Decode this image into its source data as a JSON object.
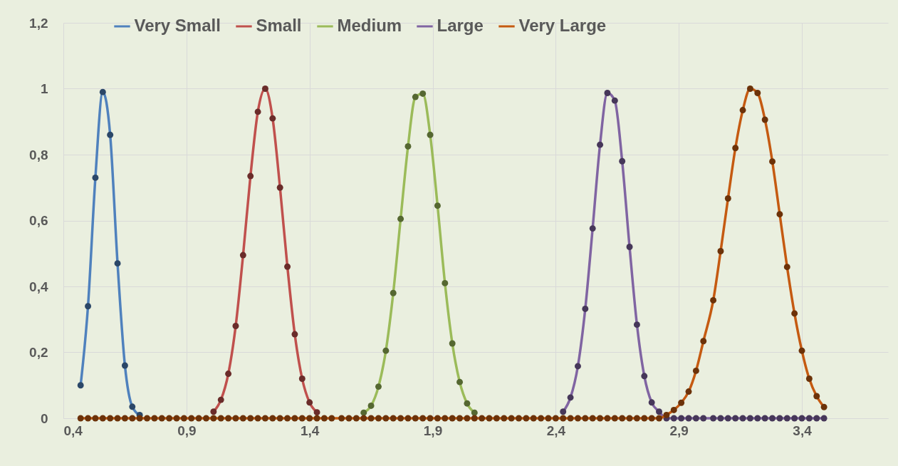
{
  "chart_data": {
    "type": "line",
    "legend": "top",
    "grid": true,
    "marker": "circle",
    "line_style": "solid",
    "xlim": [
      0.4,
      3.75
    ],
    "ylim": [
      0,
      1.2
    ],
    "xticks": [
      {
        "value": 0.4,
        "label": "0,4"
      },
      {
        "value": 0.9,
        "label": "0,9"
      },
      {
        "value": 1.4,
        "label": "1,4"
      },
      {
        "value": 1.9,
        "label": "1,9"
      },
      {
        "value": 2.4,
        "label": "2,4"
      },
      {
        "value": 2.9,
        "label": "2,9"
      },
      {
        "value": 3.4,
        "label": "3,4"
      }
    ],
    "yticks": [
      0,
      {
        "value": 0.2,
        "label": "0,2"
      },
      {
        "value": 0.4,
        "label": "0,4"
      },
      {
        "value": 0.6,
        "label": "0,6"
      },
      {
        "value": 0.8,
        "label": "0,8"
      },
      1,
      {
        "value": 1.2,
        "label": "1,2"
      }
    ],
    "x": [
      0.47,
      0.5,
      0.53,
      0.56,
      0.59,
      0.62,
      0.65,
      0.68,
      0.71,
      0.74,
      0.77,
      0.8,
      0.83,
      0.86,
      0.89,
      0.92,
      0.95,
      0.98,
      1.01,
      1.04,
      1.07,
      1.1,
      1.13,
      1.16,
      1.19,
      1.22,
      1.25,
      1.28,
      1.31,
      1.34,
      1.37,
      1.4,
      1.43,
      1.46,
      1.49,
      1.53,
      1.56,
      1.59,
      1.62,
      1.65,
      1.68,
      1.71,
      1.74,
      1.77,
      1.8,
      1.83,
      1.86,
      1.89,
      1.92,
      1.95,
      1.98,
      2.01,
      2.04,
      2.07,
      2.1,
      2.13,
      2.16,
      2.19,
      2.22,
      2.25,
      2.28,
      2.31,
      2.34,
      2.37,
      2.4,
      2.43,
      2.46,
      2.49,
      2.52,
      2.55,
      2.58,
      2.61,
      2.64,
      2.67,
      2.7,
      2.73,
      2.76,
      2.79,
      2.82,
      2.85,
      2.88,
      2.91,
      2.94,
      2.97,
      3.0,
      3.04,
      3.07,
      3.1,
      3.13,
      3.16,
      3.19,
      3.22,
      3.25,
      3.28,
      3.31,
      3.34,
      3.37,
      3.4,
      3.43,
      3.46,
      3.49
    ],
    "series": [
      {
        "name": "Very Small",
        "color": "#4f81bd",
        "values": [
          0.1,
          0.34,
          0.73,
          0.99,
          0.86,
          0.47,
          0.16,
          0.035,
          0.01,
          null,
          null,
          null,
          null,
          null,
          null,
          null,
          null,
          null,
          null,
          null,
          null,
          null,
          null,
          null,
          null,
          null,
          null,
          null,
          null,
          null,
          null,
          null,
          null,
          null,
          null,
          null,
          null,
          null,
          null,
          null,
          null,
          null,
          null,
          null,
          null,
          null,
          null,
          null,
          null,
          null,
          null,
          null,
          null,
          null,
          null,
          null,
          null,
          null,
          null,
          null,
          null,
          null,
          null,
          null,
          null,
          null,
          null,
          null,
          null,
          null,
          null,
          null,
          null,
          null,
          null,
          null,
          null,
          null,
          null,
          null,
          null,
          null,
          null,
          null,
          null,
          null,
          null,
          null,
          null,
          null,
          null,
          null,
          null,
          null,
          null,
          null,
          null,
          null,
          null,
          null,
          null
        ]
      },
      {
        "name": "Small",
        "color": "#c0504d",
        "values": [
          null,
          null,
          null,
          null,
          null,
          null,
          null,
          null,
          null,
          null,
          null,
          null,
          null,
          null,
          null,
          null,
          null,
          null,
          0.02,
          0.056,
          0.135,
          0.28,
          0.495,
          0.735,
          0.93,
          1.0,
          0.91,
          0.7,
          0.46,
          0.255,
          0.12,
          0.048,
          0.018,
          null,
          null,
          null,
          null,
          null,
          null,
          null,
          null,
          null,
          null,
          null,
          null,
          null,
          null,
          null,
          null,
          null,
          null,
          null,
          null,
          null,
          null,
          null,
          null,
          null,
          null,
          null,
          null,
          null,
          null,
          null,
          null,
          null,
          null,
          null,
          null,
          null,
          null,
          null,
          null,
          null,
          null,
          null,
          null,
          null,
          null,
          null,
          null,
          null,
          null,
          null,
          null,
          null,
          null,
          null,
          null,
          null,
          null,
          null,
          null,
          null,
          null,
          null,
          null,
          null,
          null,
          null,
          null
        ]
      },
      {
        "name": "Medium",
        "color": "#9bbb59",
        "values": [
          null,
          null,
          null,
          null,
          null,
          null,
          null,
          null,
          null,
          null,
          null,
          null,
          null,
          null,
          null,
          null,
          null,
          null,
          null,
          null,
          null,
          null,
          null,
          null,
          null,
          null,
          null,
          null,
          null,
          null,
          null,
          null,
          null,
          null,
          null,
          null,
          null,
          null,
          0.017,
          0.038,
          0.096,
          0.205,
          0.38,
          0.605,
          0.825,
          0.975,
          0.985,
          0.86,
          0.645,
          0.41,
          0.227,
          0.11,
          0.045,
          0.017,
          null,
          null,
          null,
          null,
          null,
          null,
          null,
          null,
          null,
          null,
          null,
          null,
          null,
          null,
          null,
          null,
          null,
          null,
          null,
          null,
          null,
          null,
          null,
          null,
          null,
          null,
          null,
          null,
          null,
          null,
          null,
          null,
          null,
          null,
          null,
          null,
          null,
          null,
          null,
          null,
          null,
          null,
          null,
          null,
          null,
          null,
          null
        ]
      },
      {
        "name": "Large",
        "color": "#8064a2",
        "values": [
          null,
          null,
          null,
          null,
          null,
          null,
          null,
          null,
          null,
          null,
          null,
          null,
          null,
          null,
          null,
          null,
          null,
          null,
          null,
          null,
          null,
          null,
          null,
          null,
          null,
          null,
          null,
          null,
          null,
          null,
          null,
          null,
          null,
          null,
          null,
          null,
          null,
          null,
          null,
          null,
          null,
          null,
          null,
          null,
          null,
          null,
          null,
          null,
          null,
          null,
          null,
          null,
          null,
          null,
          null,
          null,
          null,
          null,
          null,
          null,
          null,
          null,
          null,
          null,
          null,
          0.02,
          0.063,
          0.158,
          0.332,
          0.576,
          0.83,
          0.987,
          0.964,
          0.78,
          0.52,
          0.284,
          0.128,
          0.048,
          0.02,
          0,
          0,
          0,
          0,
          0,
          0,
          0,
          0,
          0,
          0,
          0,
          0,
          0,
          0,
          0,
          0,
          0,
          0,
          0,
          0,
          0,
          0
        ]
      },
      {
        "name": "Very Large",
        "color": "#c55a11",
        "values": [
          0,
          0,
          0,
          0,
          0,
          0,
          0,
          0,
          0,
          0,
          0,
          0,
          0,
          0,
          0,
          0,
          0,
          0,
          0,
          0,
          0,
          0,
          0,
          0,
          0,
          0,
          0,
          0,
          0,
          0,
          0,
          0,
          0,
          0,
          0,
          0,
          0,
          0,
          0,
          0,
          0,
          0,
          0,
          0,
          0,
          0,
          0,
          0,
          0,
          0,
          0,
          0,
          0,
          0,
          0,
          0,
          0,
          0,
          0,
          0,
          0,
          0,
          0,
          0,
          0,
          0,
          0,
          0,
          0,
          0,
          0,
          0,
          0,
          0,
          0,
          0,
          0,
          0,
          0,
          0.01,
          0.025,
          0.047,
          0.081,
          0.144,
          0.234,
          0.358,
          0.507,
          0.667,
          0.82,
          0.935,
          1.0,
          0.987,
          0.906,
          0.779,
          0.619,
          0.459,
          0.318,
          0.205,
          0.12,
          0.067,
          0.034
        ]
      }
    ]
  }
}
